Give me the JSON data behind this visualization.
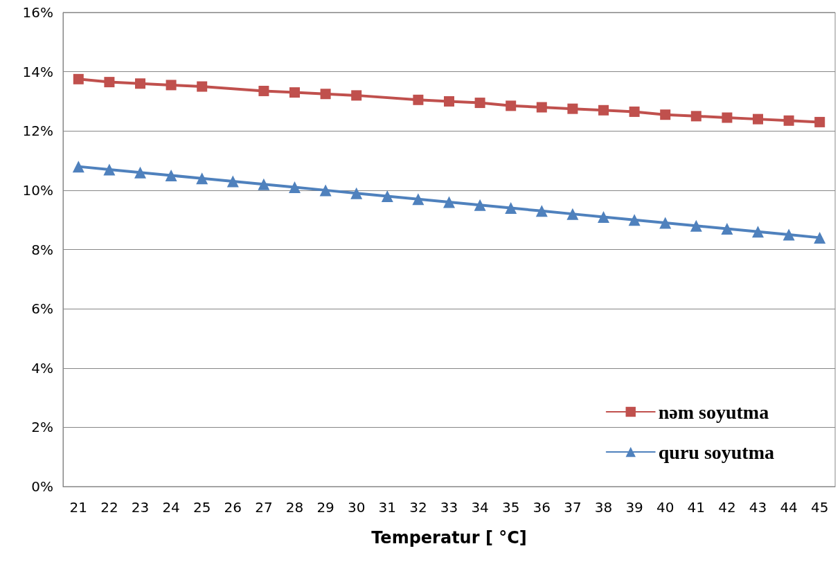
{
  "chart_data": {
    "type": "line",
    "xlabel": "Temperatur [ °C]",
    "categories": [
      "21",
      "22",
      "23",
      "24",
      "25",
      "26",
      "27",
      "28",
      "29",
      "30",
      "31",
      "32",
      "33",
      "34",
      "35",
      "36",
      "37",
      "38",
      "39",
      "40",
      "41",
      "42",
      "43",
      "44",
      "45"
    ],
    "series": [
      {
        "name": "nəm soyutma",
        "color": "#c0504d",
        "marker": "square",
        "values": [
          13.75,
          13.65,
          13.6,
          13.55,
          13.5,
          null,
          13.35,
          13.3,
          13.25,
          13.2,
          null,
          13.05,
          13.0,
          12.95,
          12.85,
          12.8,
          12.75,
          12.7,
          12.65,
          12.55,
          12.5,
          12.45,
          12.4,
          12.35,
          12.3
        ]
      },
      {
        "name": "quru soyutma",
        "color": "#4f81bd",
        "marker": "triangle",
        "values": [
          10.8,
          10.7,
          10.6,
          10.5,
          10.4,
          10.3,
          10.2,
          10.1,
          10.0,
          9.9,
          9.8,
          9.7,
          9.6,
          9.5,
          9.4,
          9.3,
          9.2,
          9.1,
          9.0,
          8.9,
          8.8,
          8.7,
          8.6,
          8.5,
          8.4
        ]
      }
    ],
    "ylim": [
      0,
      16
    ],
    "yticks": [
      {
        "value": 0,
        "label": "0%"
      },
      {
        "value": 2,
        "label": "2%"
      },
      {
        "value": 4,
        "label": "4%"
      },
      {
        "value": 6,
        "label": "6%"
      },
      {
        "value": 8,
        "label": "8%"
      },
      {
        "value": 10,
        "label": "10%"
      },
      {
        "value": 12,
        "label": "12%"
      },
      {
        "value": 14,
        "label": "14%"
      },
      {
        "value": 16,
        "label": "16%"
      }
    ],
    "grid": "y",
    "legend": "bottom right",
    "line_style": "solid"
  }
}
